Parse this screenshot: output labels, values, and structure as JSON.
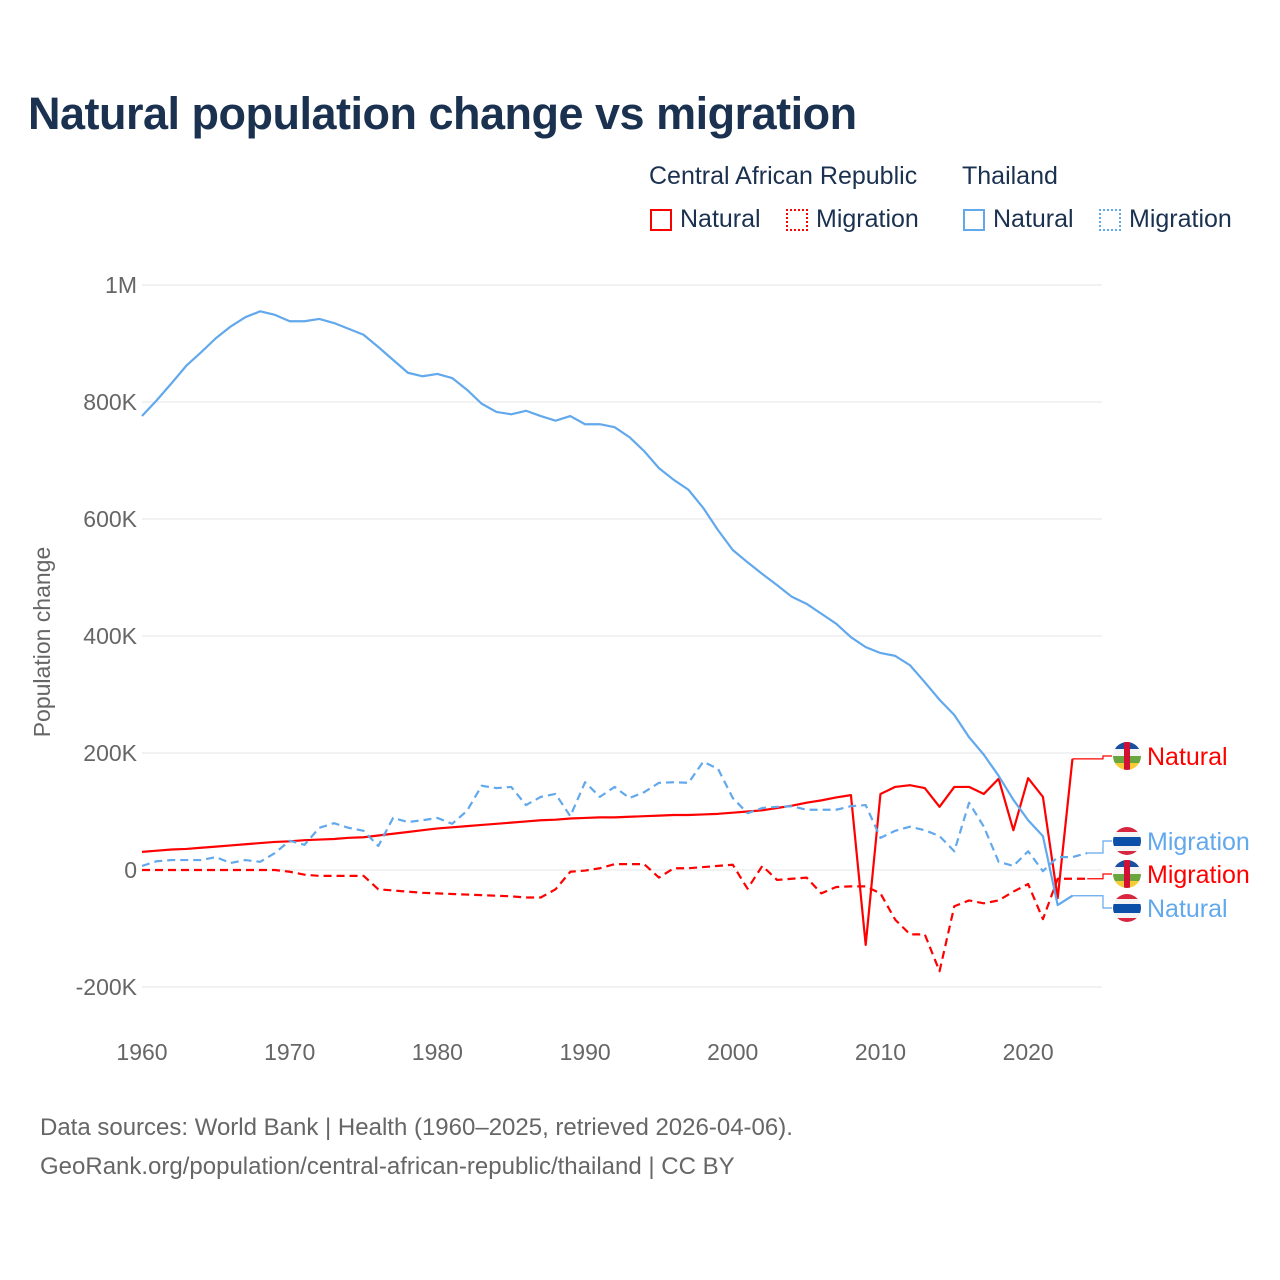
{
  "title": "Natural population change vs migration",
  "legend": {
    "groups": [
      {
        "name": "Central African Republic",
        "color": "#ff0000",
        "items": [
          "Natural",
          "Migration"
        ]
      },
      {
        "name": "Thailand",
        "color": "#62a8ec",
        "items": [
          "Natural",
          "Migration"
        ]
      }
    ]
  },
  "footer": {
    "line1": "Data sources: World Bank | Health (1960–2025, retrieved 2026-04-06).",
    "line2": "GeoRank.org/population/central-african-republic/thailand | CC BY"
  },
  "chart_data": {
    "type": "line",
    "title": "Natural population change vs migration",
    "xlabel": "",
    "ylabel": "Population change",
    "xlim": [
      1960,
      2025
    ],
    "ylim": [
      -200000,
      1000000
    ],
    "x_ticks": [
      "1960",
      "1970",
      "1980",
      "1990",
      "2000",
      "2010",
      "2020"
    ],
    "y_ticks": [
      {
        "value": 1000000,
        "label": "1M"
      },
      {
        "value": 800000,
        "label": "800K"
      },
      {
        "value": 600000,
        "label": "600K"
      },
      {
        "value": 400000,
        "label": "400K"
      },
      {
        "value": 200000,
        "label": "200K"
      },
      {
        "value": 0,
        "label": "0"
      },
      {
        "value": -200000,
        "label": "-200K"
      }
    ],
    "grid": true,
    "legend_position": "top-right",
    "series": [
      {
        "name": "Central African Republic Natural",
        "label": "Natural",
        "country": "Central African Republic",
        "color": "#ff0000",
        "dash": false,
        "start_year": 1960,
        "values_k": [
          31,
          33,
          35,
          36,
          38,
          40,
          42,
          44,
          46,
          48,
          49,
          51,
          52,
          53,
          55,
          56,
          59,
          62,
          65,
          68,
          71,
          73,
          75,
          77,
          79,
          81,
          83,
          85,
          86,
          88,
          89,
          90,
          90,
          91,
          92,
          93,
          94,
          94,
          95,
          96,
          98,
          100,
          102,
          106,
          110,
          115,
          119,
          124,
          128,
          -128,
          130,
          142,
          145,
          140,
          108,
          142,
          142,
          130,
          156,
          68,
          157,
          125,
          -48,
          190
        ]
      },
      {
        "name": "Central African Republic Migration",
        "label": "Migration",
        "country": "Central African Republic",
        "color": "#ff0000",
        "dash": true,
        "start_year": 1960,
        "values_k": [
          0,
          0,
          0,
          0,
          0,
          0,
          0,
          0,
          0,
          0,
          -3,
          -8,
          -10,
          -10,
          -10,
          -10,
          -33,
          -35,
          -37,
          -39,
          -40,
          -41,
          -42,
          -43,
          -44,
          -45,
          -47,
          -47,
          -33,
          -3,
          -1,
          3,
          10,
          10,
          10,
          -13,
          3,
          3,
          5,
          7,
          9,
          -32,
          7,
          -17,
          -15,
          -13,
          -40,
          -29,
          -28,
          -28,
          -40,
          -85,
          -110,
          -110,
          -173,
          -62,
          -52,
          -57,
          -52,
          -37,
          -24,
          -84,
          -15,
          -15,
          -15
        ]
      },
      {
        "name": "Thailand Natural",
        "label": "Natural",
        "country": "Thailand",
        "color": "#62a8ec",
        "dash": false,
        "start_year": 1960,
        "values_k": [
          776,
          803,
          832,
          862,
          885,
          909,
          929,
          945,
          955,
          949,
          938,
          938,
          942,
          935,
          925,
          915,
          894,
          872,
          850,
          844,
          848,
          841,
          821,
          797,
          783,
          779,
          785,
          776,
          768,
          776,
          762,
          762,
          757,
          740,
          716,
          687,
          667,
          650,
          619,
          581,
          547,
          526,
          506,
          487,
          467,
          455,
          438,
          421,
          398,
          381,
          371,
          366,
          350,
          321,
          291,
          265,
          227,
          197,
          161,
          120,
          85,
          58,
          -60,
          -44
        ]
      },
      {
        "name": "Thailand Migration",
        "label": "Migration",
        "country": "Thailand",
        "color": "#62a8ec",
        "dash": true,
        "start_year": 1960,
        "values_k": [
          7,
          15,
          17,
          17,
          17,
          22,
          12,
          17,
          14,
          29,
          50,
          43,
          72,
          80,
          72,
          67,
          41,
          89,
          82,
          85,
          89,
          79,
          101,
          144,
          140,
          142,
          111,
          125,
          130,
          92,
          150,
          125,
          142,
          123,
          133,
          149,
          150,
          149,
          185,
          173,
          123,
          97,
          106,
          108,
          109,
          103,
          103,
          103,
          109,
          111,
          55,
          67,
          74,
          68,
          58,
          32,
          115,
          74,
          14,
          7,
          32,
          -2,
          22,
          22,
          29
        ]
      }
    ]
  }
}
